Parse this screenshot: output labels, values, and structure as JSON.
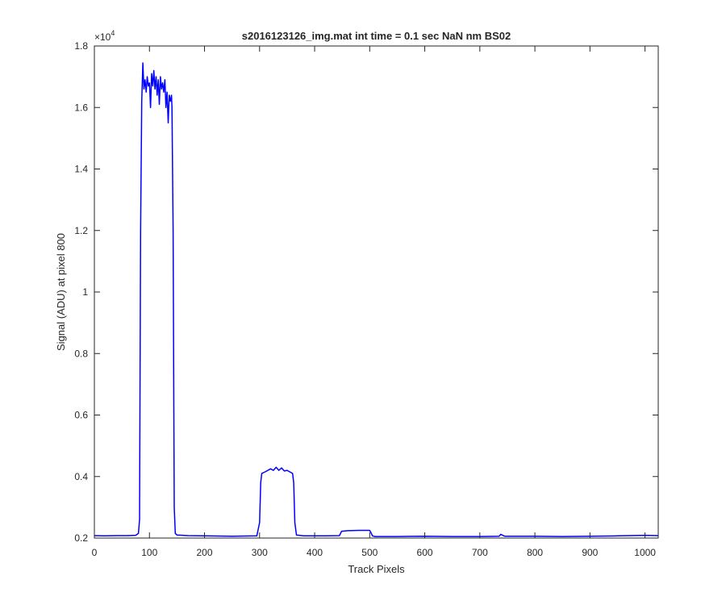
{
  "chart_data": {
    "type": "line",
    "title": "s2016123126_img.mat int time = 0.1 sec  NaN nm BS02",
    "xlabel": "Track Pixels",
    "ylabel": "Signal (ADU) at pixel 800",
    "y_exponent_label": "×10",
    "y_exponent_power": "4",
    "xlim": [
      0,
      1024
    ],
    "ylim": [
      0.2,
      1.8
    ],
    "y_scale_factor": 10000,
    "x_ticks": [
      0,
      100,
      200,
      300,
      400,
      500,
      600,
      700,
      800,
      900,
      1000
    ],
    "x_tick_labels": [
      "0",
      "100",
      "200",
      "300",
      "400",
      "500",
      "600",
      "700",
      "800",
      "900",
      "1000"
    ],
    "y_ticks": [
      0.2,
      0.4,
      0.6,
      0.8,
      1.0,
      1.2,
      1.4,
      1.6,
      1.8
    ],
    "y_tick_labels": [
      "0.2",
      "0.4",
      "0.6",
      "0.8",
      "1",
      "1.2",
      "1.4",
      "1.6",
      "1.8"
    ],
    "grid": false,
    "series_color": "#0000ff",
    "series": [
      {
        "x": [
          0,
          20,
          40,
          60,
          75,
          80,
          82,
          84,
          86,
          88,
          90,
          92,
          94,
          96,
          98,
          100,
          102,
          104,
          106,
          108,
          110,
          112,
          114,
          116,
          118,
          120,
          122,
          124,
          126,
          128,
          130,
          132,
          134,
          136,
          138,
          140,
          141,
          143,
          145,
          147,
          150,
          170,
          200,
          250,
          295,
          300,
          302,
          304,
          310,
          315,
          320,
          325,
          330,
          335,
          340,
          345,
          350,
          355,
          360,
          362,
          364,
          367,
          380,
          420,
          445,
          447,
          449,
          460,
          480,
          500,
          503,
          505,
          510,
          550,
          600,
          650,
          700,
          735,
          738,
          745,
          800,
          850,
          900,
          950,
          1000,
          1024
        ],
        "y": [
          0.208,
          0.207,
          0.208,
          0.208,
          0.209,
          0.215,
          0.26,
          1.2,
          1.62,
          1.745,
          1.66,
          1.69,
          1.65,
          1.7,
          1.67,
          1.68,
          1.6,
          1.71,
          1.67,
          1.72,
          1.66,
          1.7,
          1.64,
          1.69,
          1.61,
          1.7,
          1.66,
          1.68,
          1.65,
          1.69,
          1.6,
          1.65,
          1.55,
          1.64,
          1.62,
          1.64,
          1.6,
          1.2,
          0.3,
          0.215,
          0.21,
          0.208,
          0.207,
          0.206,
          0.207,
          0.25,
          0.38,
          0.41,
          0.415,
          0.42,
          0.425,
          0.42,
          0.43,
          0.42,
          0.428,
          0.418,
          0.42,
          0.415,
          0.41,
          0.38,
          0.25,
          0.21,
          0.207,
          0.207,
          0.208,
          0.215,
          0.222,
          0.224,
          0.225,
          0.225,
          0.215,
          0.207,
          0.205,
          0.205,
          0.206,
          0.205,
          0.205,
          0.206,
          0.212,
          0.206,
          0.206,
          0.205,
          0.206,
          0.207,
          0.209,
          0.208
        ]
      }
    ]
  }
}
